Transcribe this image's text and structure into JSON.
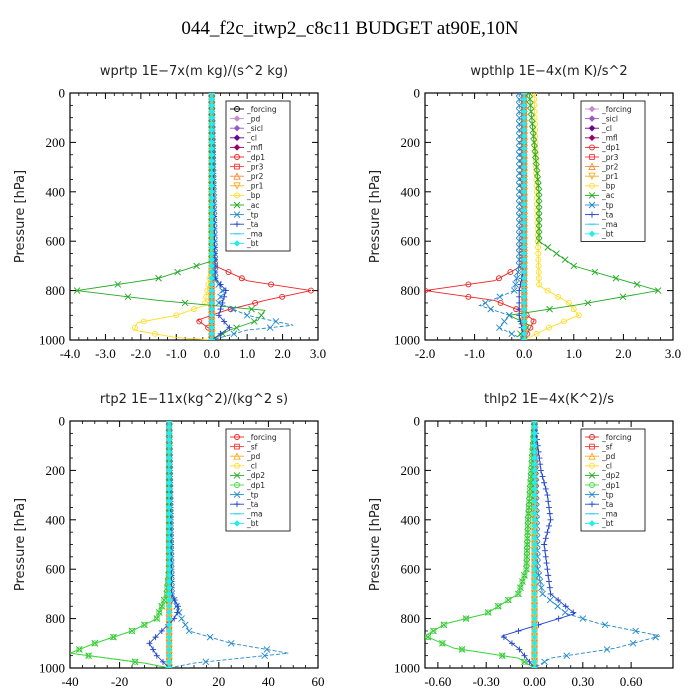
{
  "figure_title": "044_f2c_itwp2_c8c11  BUDGET at90E,10N",
  "chart_data": [
    {
      "type": "line",
      "title": "wprtp  1E−7x(m kg)/(s^2 kg)",
      "ylabel": "Pressure [hPa]",
      "xlim": [
        -4.0,
        3.0
      ],
      "ylim": [
        1000,
        0
      ],
      "xticks": [
        "-4.0",
        "-3.0",
        "-2.0",
        "-1.0",
        "0.0",
        "1.0",
        "2.0",
        "3.0"
      ],
      "xtick_values": [
        -4,
        -3,
        -2,
        -1,
        0,
        1,
        2,
        3
      ],
      "yticks": [
        "0",
        "200",
        "400",
        "600",
        "800",
        "1000"
      ],
      "ytick_values": [
        0,
        200,
        400,
        600,
        800,
        1000
      ],
      "legend_position": "top-right",
      "series": [
        {
          "name": "_forcing",
          "color": "#000000",
          "marker": "o",
          "y": [
            0,
            200,
            400,
            600,
            800,
            1000
          ],
          "x": [
            0,
            0,
            0,
            0,
            0,
            0
          ]
        },
        {
          "name": "_pd",
          "color": "#cc88cc",
          "marker": "d",
          "y": [
            0,
            500,
            1000
          ],
          "x": [
            0,
            0,
            0
          ]
        },
        {
          "name": "_sicl",
          "color": "#9955cc",
          "marker": "d",
          "y": [
            0,
            500,
            1000
          ],
          "x": [
            0,
            0,
            0
          ]
        },
        {
          "name": "_cl",
          "color": "#660099",
          "marker": "d",
          "y": [
            0,
            500,
            1000
          ],
          "x": [
            0,
            0,
            0
          ]
        },
        {
          "name": "_mfl",
          "color": "#990066",
          "marker": "d",
          "y": [
            0,
            500,
            1000
          ],
          "x": [
            0,
            0,
            0
          ]
        },
        {
          "name": "_dp1",
          "color": "#ee2222",
          "marker": "o",
          "y": [
            0,
            600,
            700,
            760,
            800,
            840,
            880,
            920,
            960,
            1000
          ],
          "x": [
            0,
            0.02,
            0.1,
            1.0,
            2.8,
            1.5,
            0.4,
            -0.4,
            0,
            0
          ]
        },
        {
          "name": "_pr3",
          "color": "#ff3333",
          "marker": "s",
          "y": [
            0,
            500,
            1000
          ],
          "x": [
            0,
            0,
            0
          ]
        },
        {
          "name": "_pr2",
          "color": "#ff8833",
          "marker": "^",
          "y": [
            0,
            500,
            1000
          ],
          "x": [
            0,
            0,
            0
          ]
        },
        {
          "name": "_pr1",
          "color": "#ffaa22",
          "marker": "v",
          "y": [
            0,
            500,
            1000
          ],
          "x": [
            0,
            0,
            0
          ]
        },
        {
          "name": "_bp",
          "color": "#ffdd22",
          "marker": "o",
          "y": [
            0,
            700,
            860,
            900,
            930,
            960,
            990,
            1000
          ],
          "x": [
            0,
            0,
            -0.2,
            -1.0,
            -2.1,
            -2.2,
            -1.0,
            0
          ]
        },
        {
          "name": "_ac",
          "color": "#22aa22",
          "marker": "x",
          "y": [
            0,
            680,
            750,
            800,
            840,
            880,
            920,
            960,
            1000
          ],
          "x": [
            0,
            0,
            -1.5,
            -3.8,
            -1.5,
            1.5,
            1.3,
            0.5,
            0
          ]
        },
        {
          "name": "_tp",
          "color": "#2288cc",
          "marker": "x",
          "y": [
            0,
            750,
            800,
            850,
            900,
            940,
            960,
            1000
          ],
          "x": [
            0,
            0.1,
            0.3,
            0.2,
            1.0,
            2.3,
            1.0,
            0
          ]
        },
        {
          "name": "_ta",
          "color": "#2244cc",
          "marker": "+",
          "y": [
            0,
            750,
            800,
            850,
            900,
            950,
            1000
          ],
          "x": [
            0,
            0.1,
            0.4,
            0.3,
            0.2,
            0.5,
            0
          ]
        },
        {
          "name": "_ma",
          "color": "#22ccee",
          "marker": "-",
          "y": [
            0,
            500,
            1000
          ],
          "x": [
            0,
            0,
            0
          ]
        },
        {
          "name": "_bt",
          "color": "#22eeee",
          "marker": "d",
          "y": [
            0,
            500,
            1000
          ],
          "x": [
            0,
            0,
            0
          ]
        }
      ]
    },
    {
      "type": "line",
      "title": "wpthlp  1E−4x(m K)/s^2",
      "ylabel": "Pressure [hPa]",
      "xlim": [
        -2.0,
        3.0
      ],
      "ylim": [
        1000,
        0
      ],
      "xticks": [
        "-2.0",
        "-1.0",
        "0.0",
        "1.0",
        "2.0",
        "3.0"
      ],
      "xtick_values": [
        -2,
        -1,
        0,
        1,
        2,
        3
      ],
      "yticks": [
        "0",
        "200",
        "400",
        "600",
        "800",
        "1000"
      ],
      "ytick_values": [
        0,
        200,
        400,
        600,
        800,
        1000
      ],
      "legend_position": "top-right",
      "series": [
        {
          "name": "_forcing",
          "color": "#cc88cc",
          "marker": "d",
          "y": [
            0,
            500,
            1000
          ],
          "x": [
            0,
            0,
            0
          ]
        },
        {
          "name": "_sicl",
          "color": "#9955cc",
          "marker": "d",
          "y": [
            0,
            500,
            1000
          ],
          "x": [
            0,
            0,
            0
          ]
        },
        {
          "name": "_cl",
          "color": "#660099",
          "marker": "d",
          "y": [
            0,
            500,
            1000
          ],
          "x": [
            0,
            0,
            0
          ]
        },
        {
          "name": "_mfl",
          "color": "#990066",
          "marker": "d",
          "y": [
            0,
            500,
            1000
          ],
          "x": [
            0,
            0,
            0
          ]
        },
        {
          "name": "_dp1",
          "color": "#ee2222",
          "marker": "o",
          "y": [
            0,
            700,
            760,
            800,
            840,
            880,
            920,
            960,
            1000
          ],
          "x": [
            0,
            -0.05,
            -0.6,
            -2.0,
            -0.6,
            -0.1,
            0.2,
            0.1,
            0
          ]
        },
        {
          "name": "_pr3",
          "color": "#ff3333",
          "marker": "s",
          "y": [
            0,
            500,
            1000
          ],
          "x": [
            0,
            0,
            0
          ]
        },
        {
          "name": "_pr2",
          "color": "#ff8833",
          "marker": "^",
          "y": [
            0,
            500,
            1000
          ],
          "x": [
            0,
            0,
            0
          ]
        },
        {
          "name": "_pr1",
          "color": "#ffaa22",
          "marker": "v",
          "y": [
            0,
            500,
            1000
          ],
          "x": [
            0,
            0,
            0
          ]
        },
        {
          "name": "_bp",
          "color": "#ffdd22",
          "marker": "o",
          "y": [
            0,
            780,
            850,
            900,
            950,
            1000
          ],
          "x": [
            0.2,
            0.3,
            0.9,
            1.1,
            0.5,
            0
          ]
        },
        {
          "name": "_ac",
          "color": "#22aa22",
          "marker": "x",
          "y": [
            0,
            200,
            400,
            600,
            700,
            800,
            860,
            900,
            940,
            980,
            1000
          ],
          "x": [
            0.1,
            0.2,
            0.3,
            0.3,
            1.0,
            2.7,
            1.0,
            -0.3,
            0.1,
            -0.1,
            0
          ]
        },
        {
          "name": "_tp",
          "color": "#2288cc",
          "marker": "x",
          "y": [
            0,
            700,
            800,
            860,
            900,
            950,
            1000
          ],
          "x": [
            -0.1,
            -0.1,
            -0.2,
            -0.9,
            -0.3,
            -0.5,
            0
          ]
        },
        {
          "name": "_ta",
          "color": "#2244cc",
          "marker": "+",
          "y": [
            0,
            700,
            800,
            900,
            1000
          ],
          "x": [
            0,
            0,
            -0.1,
            -0.1,
            0
          ]
        },
        {
          "name": "_ma",
          "color": "#22ccee",
          "marker": "-",
          "y": [
            0,
            500,
            1000
          ],
          "x": [
            0,
            0,
            0
          ]
        },
        {
          "name": "_bt",
          "color": "#22eeee",
          "marker": "d",
          "y": [
            0,
            500,
            1000
          ],
          "x": [
            0,
            0,
            0
          ]
        }
      ]
    },
    {
      "type": "line",
      "title": "rtp2  1E−11x(kg^2)/(kg^2 s)",
      "ylabel": "Pressure [hPa]",
      "xlim": [
        -40,
        60
      ],
      "ylim": [
        1000,
        0
      ],
      "xticks": [
        "-40",
        "-20",
        "0",
        "20",
        "40",
        "60"
      ],
      "xtick_values": [
        -40,
        -20,
        0,
        20,
        40,
        60
      ],
      "yticks": [
        "0",
        "200",
        "400",
        "600",
        "800",
        "1000"
      ],
      "ytick_values": [
        0,
        200,
        400,
        600,
        800,
        1000
      ],
      "legend_position": "top-right",
      "series": [
        {
          "name": "_forcing",
          "color": "#ee2222",
          "marker": "o",
          "y": [
            0,
            500,
            1000
          ],
          "x": [
            0,
            0,
            0
          ]
        },
        {
          "name": "_sf",
          "color": "#ff3333",
          "marker": "s",
          "y": [
            0,
            500,
            1000
          ],
          "x": [
            0,
            0,
            0
          ]
        },
        {
          "name": "_pd",
          "color": "#ffaa22",
          "marker": "^",
          "y": [
            0,
            500,
            1000
          ],
          "x": [
            0,
            0,
            0
          ]
        },
        {
          "name": "_cl",
          "color": "#ffdd22",
          "marker": "o",
          "y": [
            0,
            500,
            1000
          ],
          "x": [
            0,
            0,
            0
          ]
        },
        {
          "name": "_dp2",
          "color": "#22aa22",
          "marker": "x",
          "y": [
            0,
            600,
            700,
            800,
            850,
            900,
            940,
            980,
            1000
          ],
          "x": [
            0,
            0,
            -1,
            -5,
            -15,
            -30,
            -40,
            -10,
            0
          ]
        },
        {
          "name": "_dp1",
          "color": "#44dd44",
          "marker": "o",
          "y": [
            0,
            600,
            700,
            800,
            850,
            900,
            940,
            980,
            1000
          ],
          "x": [
            0,
            0,
            -1,
            -5,
            -15,
            -30,
            -40,
            -10,
            0
          ]
        },
        {
          "name": "_tp",
          "color": "#2288cc",
          "marker": "x",
          "y": [
            0,
            700,
            800,
            850,
            900,
            940,
            980,
            1000
          ],
          "x": [
            0,
            1,
            5,
            8,
            25,
            48,
            10,
            0
          ]
        },
        {
          "name": "_ta",
          "color": "#2244cc",
          "marker": "+",
          "y": [
            0,
            700,
            760,
            800,
            850,
            900,
            950,
            1000
          ],
          "x": [
            0,
            1,
            4,
            2,
            -3,
            -8,
            -5,
            0
          ]
        },
        {
          "name": "_ma",
          "color": "#22ccee",
          "marker": "-",
          "y": [
            0,
            500,
            1000
          ],
          "x": [
            0,
            0,
            0
          ]
        },
        {
          "name": "_bt",
          "color": "#22eeee",
          "marker": "d",
          "y": [
            0,
            500,
            1000
          ],
          "x": [
            0,
            0,
            0
          ]
        }
      ]
    },
    {
      "type": "line",
      "title": "thlp2  1E−4x(K^2)/s",
      "ylabel": "Pressure [hPa]",
      "xlim": [
        -0.68,
        0.86
      ],
      "ylim": [
        1000,
        0
      ],
      "xticks": [
        "-0.60",
        "-0.30",
        "0.00",
        "0.30",
        "0.60"
      ],
      "xtick_values": [
        -0.6,
        -0.3,
        0.0,
        0.3,
        0.6
      ],
      "yticks": [
        "0",
        "200",
        "400",
        "600",
        "800",
        "1000"
      ],
      "ytick_values": [
        0,
        200,
        400,
        600,
        800,
        1000
      ],
      "legend_position": "top-right",
      "series": [
        {
          "name": "_forcing",
          "color": "#ee2222",
          "marker": "o",
          "y": [
            0,
            500,
            1000
          ],
          "x": [
            0,
            0,
            0
          ]
        },
        {
          "name": "_sf",
          "color": "#ff3333",
          "marker": "s",
          "y": [
            0,
            500,
            1000
          ],
          "x": [
            0,
            0,
            0
          ]
        },
        {
          "name": "_pd",
          "color": "#ffaa22",
          "marker": "^",
          "y": [
            0,
            500,
            1000
          ],
          "x": [
            0,
            0,
            0
          ]
        },
        {
          "name": "_cl",
          "color": "#ffdd22",
          "marker": "o",
          "y": [
            0,
            500,
            1000
          ],
          "x": [
            0,
            0,
            0
          ]
        },
        {
          "name": "_dp2",
          "color": "#22aa22",
          "marker": "x",
          "y": [
            0,
            200,
            400,
            600,
            700,
            780,
            820,
            870,
            920,
            960,
            1000
          ],
          "x": [
            0,
            -0.02,
            -0.04,
            -0.05,
            -0.1,
            -0.3,
            -0.55,
            -0.68,
            -0.5,
            -0.1,
            0
          ]
        },
        {
          "name": "_dp1",
          "color": "#44dd44",
          "marker": "o",
          "y": [
            0,
            200,
            400,
            600,
            700,
            780,
            820,
            870,
            920,
            960,
            1000
          ],
          "x": [
            0,
            -0.02,
            -0.04,
            -0.05,
            -0.1,
            -0.3,
            -0.55,
            -0.68,
            -0.5,
            -0.1,
            0
          ]
        },
        {
          "name": "_tp",
          "color": "#2288cc",
          "marker": "x",
          "y": [
            0,
            600,
            700,
            780,
            820,
            870,
            920,
            960,
            1000
          ],
          "x": [
            0,
            0.02,
            0.05,
            0.2,
            0.4,
            0.78,
            0.5,
            0.1,
            0
          ]
        },
        {
          "name": "_ta",
          "color": "#2244cc",
          "marker": "+",
          "y": [
            0,
            200,
            300,
            400,
            500,
            600,
            700,
            780,
            820,
            870,
            920,
            1000
          ],
          "x": [
            0,
            0.04,
            0.08,
            0.1,
            0.06,
            0.08,
            0.1,
            0.25,
            0.05,
            -0.2,
            -0.1,
            0
          ]
        },
        {
          "name": "_ma",
          "color": "#22ccee",
          "marker": "-",
          "y": [
            0,
            500,
            1000
          ],
          "x": [
            0,
            0,
            0
          ]
        },
        {
          "name": "_bt",
          "color": "#22eeee",
          "marker": "d",
          "y": [
            0,
            500,
            1000
          ],
          "x": [
            0,
            0,
            0
          ]
        }
      ]
    }
  ]
}
